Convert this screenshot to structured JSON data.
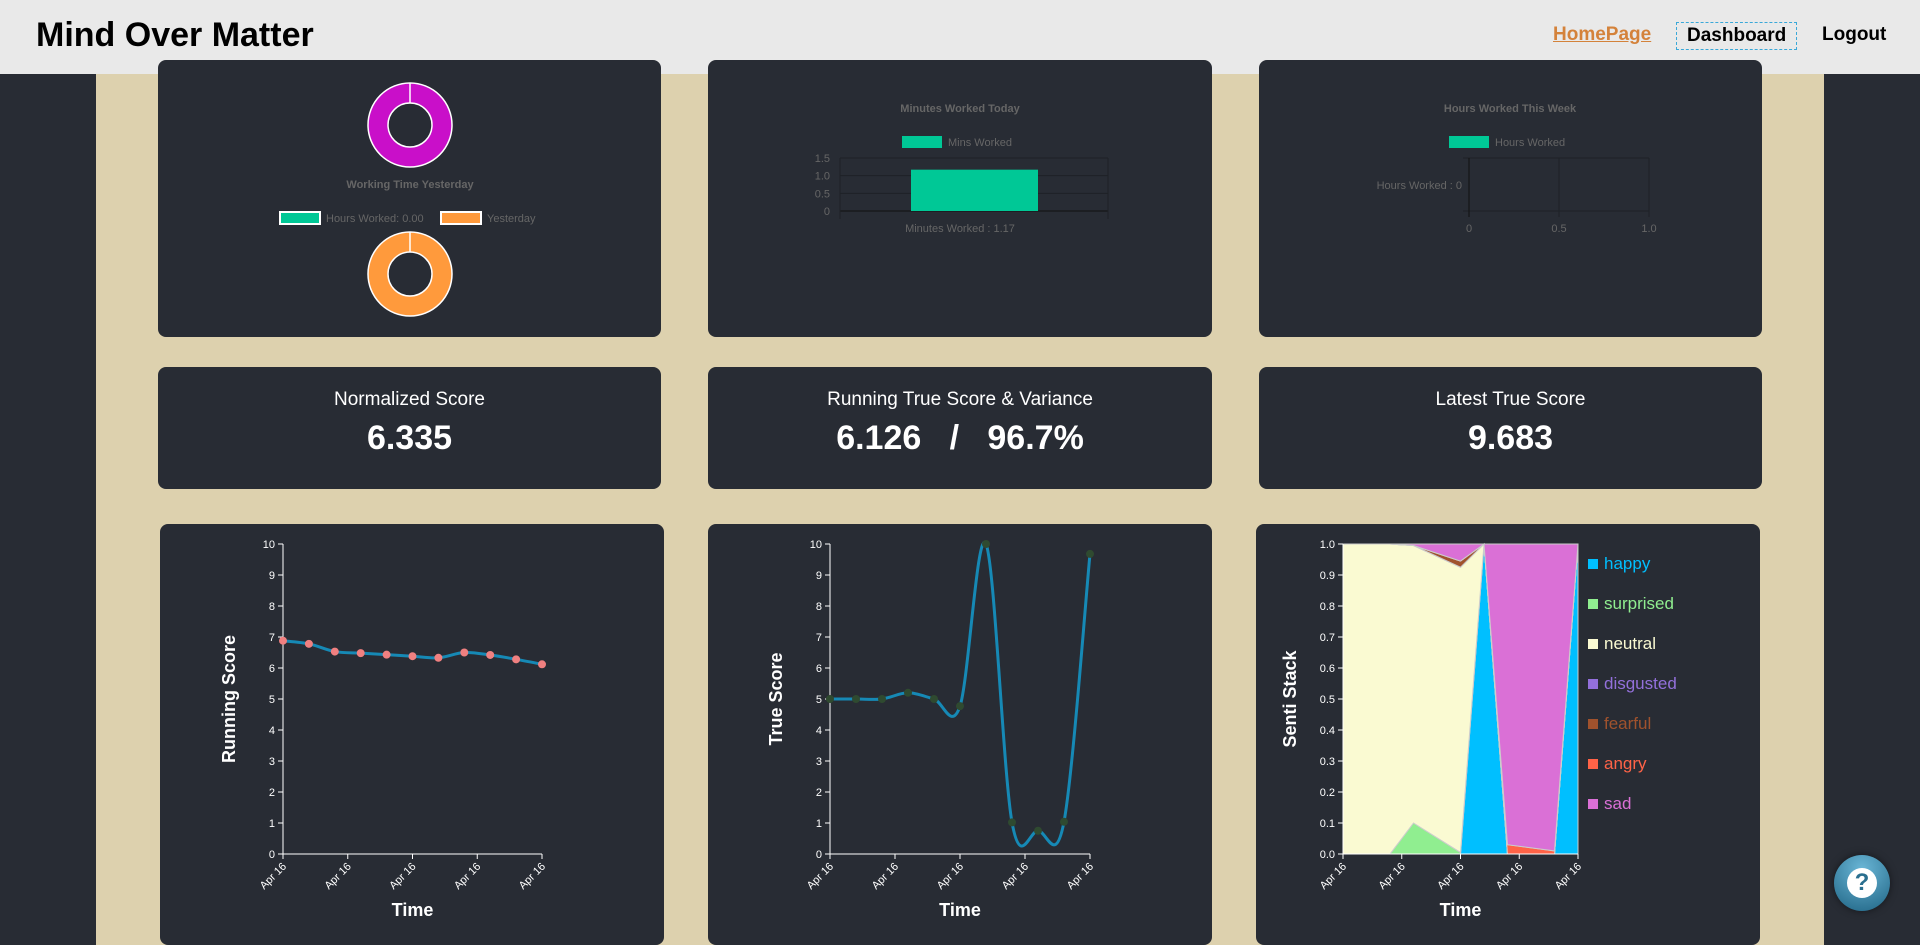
{
  "header": {
    "title": "Mind Over Matter",
    "nav": {
      "home": "HomePage",
      "dashboard": "Dashboard",
      "logout": "Logout"
    }
  },
  "colors": {
    "accent": "#00c896",
    "orange": "#ff9a3c",
    "magenta": "#c90fc9",
    "line": "#1689b5"
  },
  "yesterday": {
    "title": "Working Time Yesterday",
    "legend": [
      "Hours Worked: 0.00",
      "Yesterday"
    ]
  },
  "minutes_today": {
    "title": "Minutes Worked Today",
    "legend": "Mins Worked",
    "xlabel": "Minutes Worked : 1.17",
    "value": 1.17,
    "yticks": [
      "0",
      "0.5",
      "1.0",
      "1.5"
    ],
    "ylim": [
      0,
      1.5
    ]
  },
  "hours_week": {
    "title": "Hours Worked This Week",
    "legend": "Hours Worked",
    "ylabel": "Hours Worked : 0",
    "value": 0,
    "xticks": [
      "0",
      "0.5",
      "1.0"
    ]
  },
  "stats": [
    {
      "title": "Normalized Score",
      "value": "6.335"
    },
    {
      "title": "Running True Score & Variance",
      "value": "6.126   /   96.7%"
    },
    {
      "title": "Latest True Score",
      "value": "9.683"
    }
  ],
  "chart_data": [
    {
      "type": "line",
      "ylabel": "Running Score",
      "xlabel": "Time",
      "ylim": [
        0,
        10
      ],
      "yticks": [
        "0",
        "1",
        "2",
        "3",
        "4",
        "5",
        "6",
        "7",
        "8",
        "9",
        "10"
      ],
      "xticks": [
        "Apr 16",
        "Apr 16",
        "Apr 16",
        "Apr 16",
        "Apr 16"
      ],
      "values": [
        6.88,
        6.78,
        6.53,
        6.48,
        6.43,
        6.38,
        6.33,
        6.5,
        6.42,
        6.28,
        6.12
      ],
      "line_color": "#1689b5",
      "dot_color": "#f08080"
    },
    {
      "type": "line",
      "ylabel": "True Score",
      "xlabel": "Time",
      "ylim": [
        0,
        10
      ],
      "yticks": [
        "0",
        "1",
        "2",
        "3",
        "4",
        "5",
        "6",
        "7",
        "8",
        "9",
        "10"
      ],
      "xticks": [
        "Apr 16",
        "Apr 16",
        "Apr 16",
        "Apr 16",
        "Apr 16"
      ],
      "values": [
        5,
        5,
        5,
        5.2,
        5,
        4.77,
        10,
        1.02,
        0.75,
        1.04,
        9.68
      ],
      "line_color": "#1689b5",
      "dot_color": "#2f4a30"
    },
    {
      "type": "area",
      "ylabel": "Senti Stack",
      "xlabel": "Time",
      "ylim": [
        0,
        1
      ],
      "yticks": [
        "0.0",
        "0.1",
        "0.2",
        "0.3",
        "0.4",
        "0.5",
        "0.6",
        "0.7",
        "0.8",
        "0.9",
        "1.0"
      ],
      "xticks": [
        "Apr 16",
        "Apr 16",
        "Apr 16",
        "Apr 16",
        "Apr 16"
      ],
      "series": [
        {
          "name": "happy",
          "color": "#00bfff",
          "values": [
            0,
            0,
            0,
            0,
            1,
            0,
            0,
            1
          ]
        },
        {
          "name": "surprised",
          "color": "#90ee90",
          "values": [
            0,
            0,
            0.1,
            0.005,
            0,
            0,
            0,
            0
          ]
        },
        {
          "name": "neutral",
          "color": "#fafad2",
          "values": [
            1,
            1,
            0.895,
            0.92,
            0,
            0,
            0,
            0
          ]
        },
        {
          "name": "disgusted",
          "color": "#9370db",
          "values": [
            0,
            0,
            0,
            0,
            0,
            0,
            0,
            0
          ]
        },
        {
          "name": "fearful",
          "color": "#a0522d",
          "values": [
            0,
            0,
            0,
            0.02,
            0,
            0,
            0,
            0
          ]
        },
        {
          "name": "angry",
          "color": "#ff6347",
          "values": [
            0,
            0,
            0,
            0,
            0,
            0.03,
            0.01,
            0
          ]
        },
        {
          "name": "sad",
          "color": "#da70d6",
          "values": [
            0,
            0,
            0.005,
            0.055,
            0,
            0.97,
            0.99,
            0
          ]
        }
      ]
    }
  ],
  "help": {
    "label": "?"
  }
}
